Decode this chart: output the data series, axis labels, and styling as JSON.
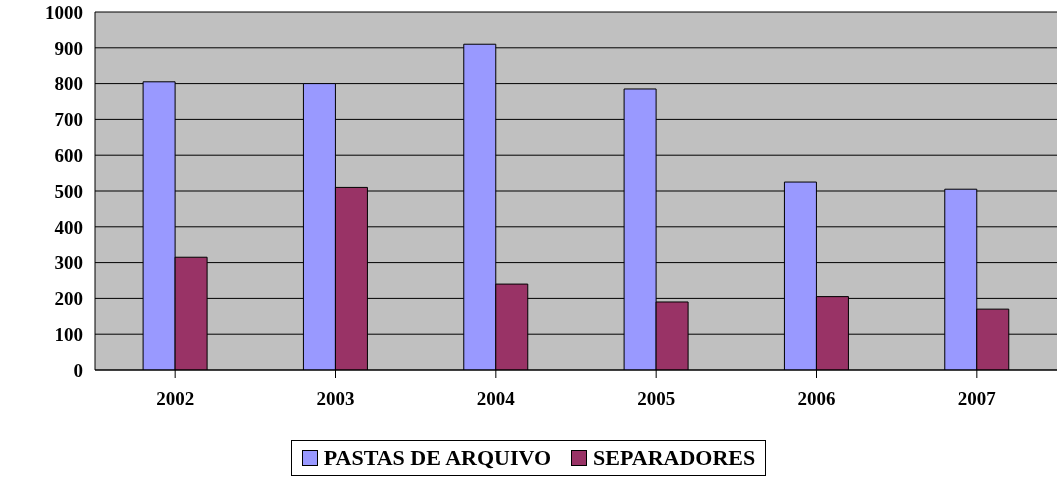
{
  "chart_data": {
    "type": "bar",
    "categories": [
      "2002",
      "2003",
      "2004",
      "2005",
      "2006",
      "2007"
    ],
    "series": [
      {
        "name": "PASTAS DE ARQUIVO",
        "color": "#9999ff",
        "values": [
          805,
          800,
          910,
          785,
          525,
          505
        ]
      },
      {
        "name": "SEPARADORES",
        "color": "#993366",
        "values": [
          315,
          510,
          240,
          190,
          205,
          170
        ]
      }
    ],
    "ylim": [
      0,
      1000
    ],
    "yticks": [
      0,
      100,
      200,
      300,
      400,
      500,
      600,
      700,
      800,
      900,
      1000
    ],
    "grid": "y",
    "legend": "bottom"
  }
}
